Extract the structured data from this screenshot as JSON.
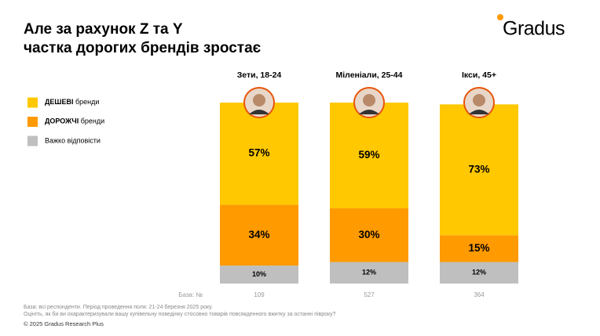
{
  "title": [
    "Але за рахунок Z та Y",
    "частка дорогих брендів зростає"
  ],
  "logo": "Gradus",
  "chart_data": {
    "type": "bar",
    "stacked": true,
    "legend": "left",
    "categories": [
      "Зети, 18-24",
      "Міленіали, 25-44",
      "Ікси, 45+"
    ],
    "series": [
      {
        "name": "ДЕШЕВІ бренди",
        "color": "#ffc800",
        "values": [
          57,
          59,
          73
        ],
        "value_labels": [
          "57%",
          "59%",
          "73%"
        ]
      },
      {
        "name": "ДОРОЖЧІ бренди",
        "color": "#ff9a00",
        "values": [
          34,
          30,
          15
        ],
        "value_labels": [
          "34%",
          "30%",
          "15%"
        ]
      },
      {
        "name": "Важко відповісти",
        "color": "#bfbfbf",
        "values": [
          10,
          12,
          12
        ],
        "value_labels": [
          "10%",
          "12%",
          "12%"
        ]
      }
    ],
    "ylim": [
      0,
      101
    ]
  },
  "base": {
    "label": "База: №",
    "values": [
      109,
      527,
      364
    ]
  },
  "footnotes": [
    "База: всі респонденти. Період проведення поля: 21-24 березня 2025 року.",
    "Оцінїть, як би ви охарактеризували вашу купівельну поведінку стосовно товарів повсякденного вжитку за останні півроку?"
  ],
  "copyright": "© 2025 Gradus Research Plus"
}
